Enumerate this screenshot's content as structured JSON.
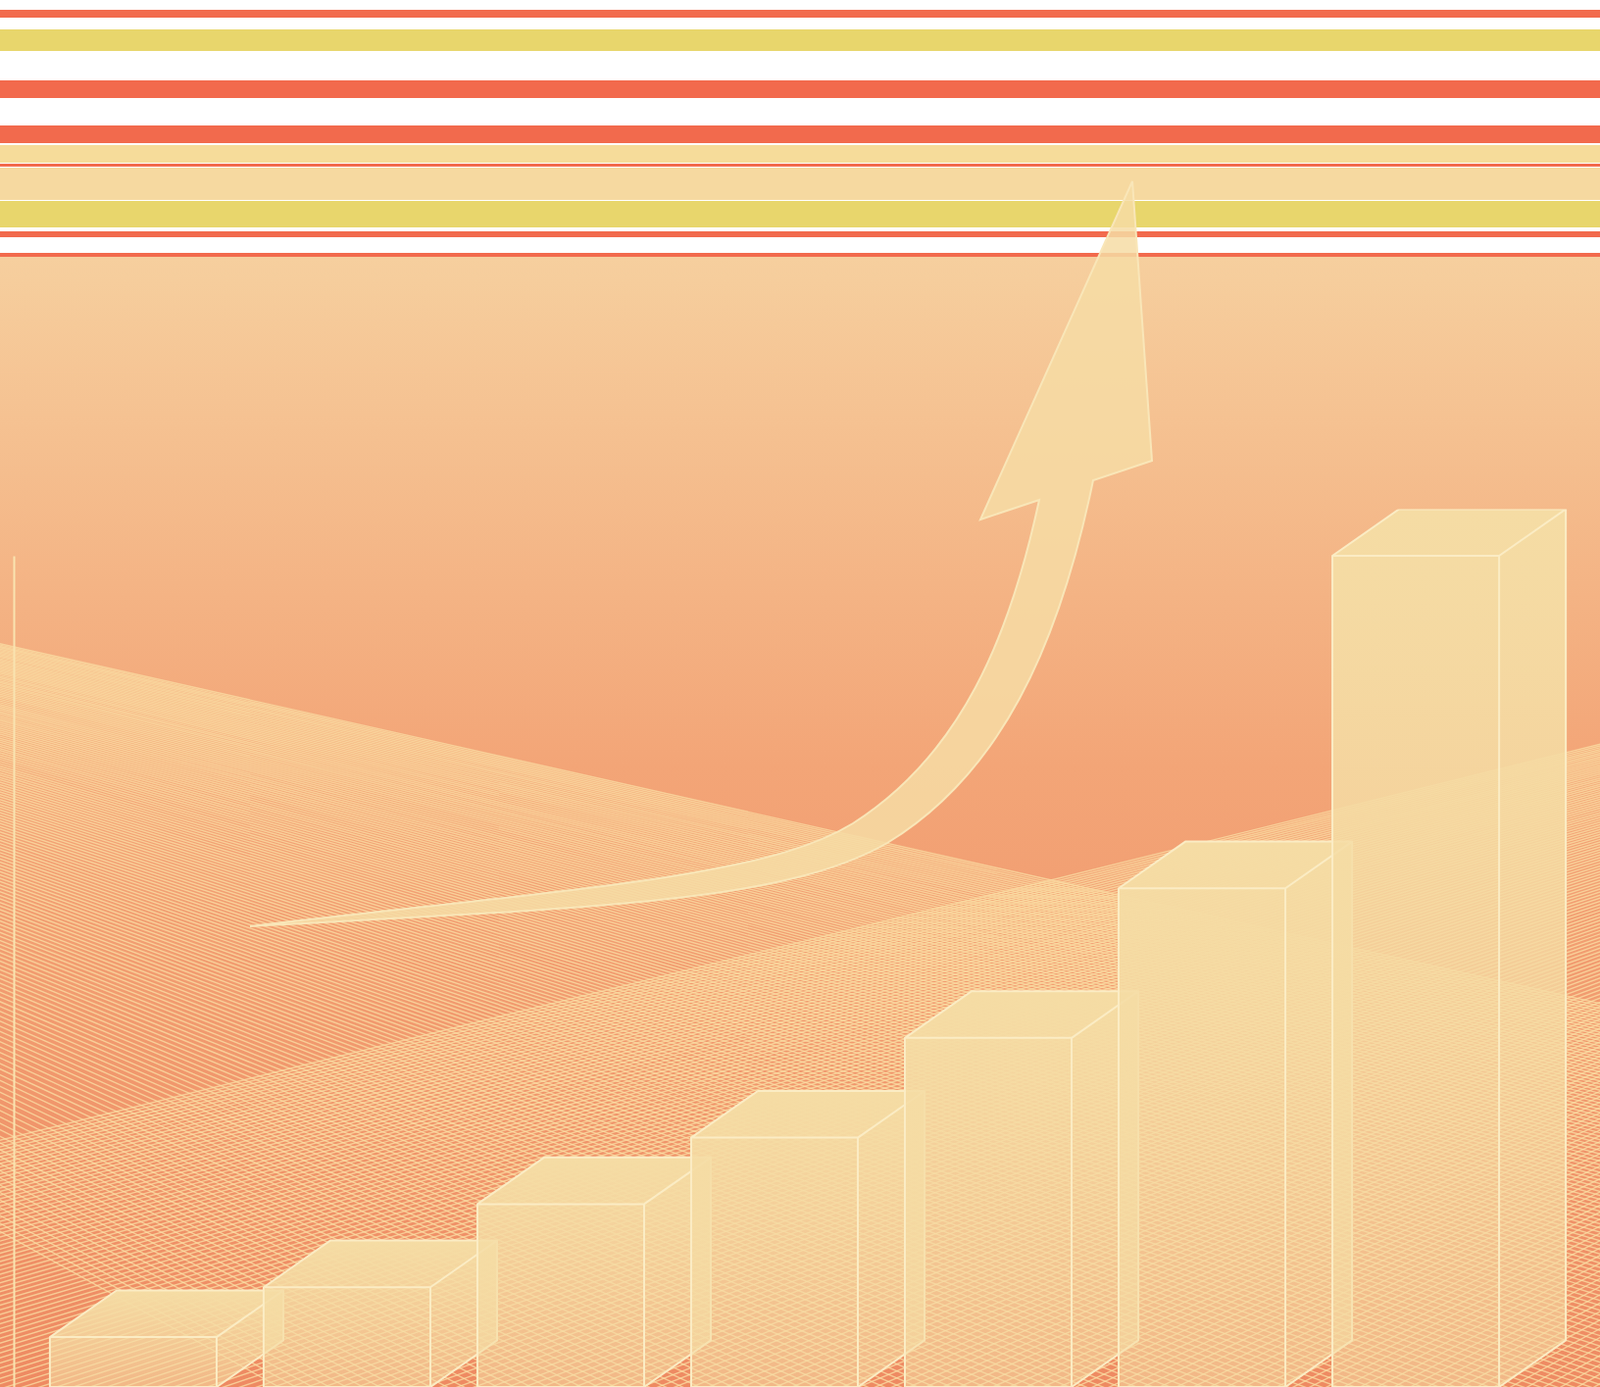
{
  "chart_data": {
    "type": "bar",
    "categories": [
      null,
      null,
      null,
      null,
      null,
      null,
      null
    ],
    "values": [
      6,
      12,
      22,
      30,
      42,
      60,
      100
    ],
    "color": "#f5dca4",
    "ylim": [
      0,
      100
    ],
    "tick_labels": false
  }
}
